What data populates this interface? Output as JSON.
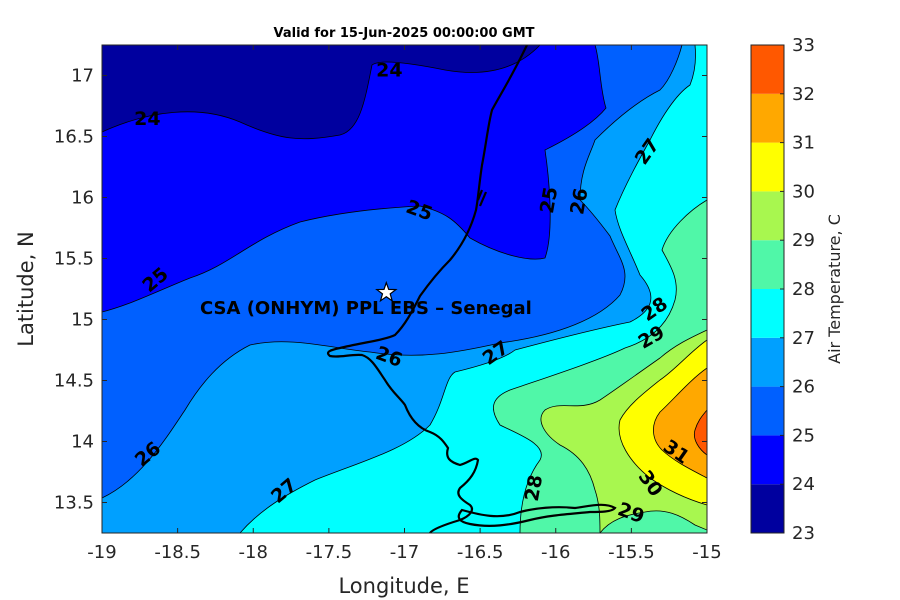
{
  "chart_data": {
    "type": "heatmap",
    "subtype": "filled-contour-map",
    "title": "Valid for 15-Jun-2025 00:00:00 GMT",
    "xlabel": "Longitude, E",
    "ylabel": "Latitude, N",
    "xlim": [
      -19,
      -15
    ],
    "ylim": [
      13.25,
      17.25
    ],
    "xticks": [
      "-19",
      "-18.5",
      "-18",
      "-17.5",
      "-17",
      "-16.5",
      "-16",
      "-15.5",
      "-15"
    ],
    "yticks": [
      "13.5",
      "14",
      "14.5",
      "15",
      "15.5",
      "16",
      "16.5",
      "17"
    ],
    "colorbar": {
      "label": "Air Temperature, C",
      "ticks": [
        "23",
        "24",
        "25",
        "26",
        "27",
        "28",
        "29",
        "30",
        "31",
        "32",
        "33"
      ],
      "levels": [
        23,
        24,
        25,
        26,
        27,
        28,
        29,
        30,
        31,
        32,
        33
      ],
      "colors": [
        "#00009f",
        "#0000ff",
        "#0060ff",
        "#00a0ff",
        "#00ffff",
        "#50f7a8",
        "#a8f74f",
        "#ffff00",
        "#ffa800",
        "#ff5800",
        "#ff0000"
      ]
    },
    "contour_labels": [
      {
        "text": "24",
        "lon": -17.1,
        "lat": 17.05
      },
      {
        "text": "24",
        "lon": -18.7,
        "lat": 16.65
      },
      {
        "text": "25",
        "lon": -16.9,
        "lat": 15.9
      },
      {
        "text": "25",
        "lon": -16.05,
        "lat": 15.98
      },
      {
        "text": "26",
        "lon": -15.85,
        "lat": 15.97
      },
      {
        "text": "27",
        "lon": -15.4,
        "lat": 16.38
      },
      {
        "text": "25",
        "lon": -18.65,
        "lat": 15.33
      },
      {
        "text": "28",
        "lon": -15.35,
        "lat": 15.09
      },
      {
        "text": "29",
        "lon": -15.37,
        "lat": 14.86
      },
      {
        "text": "26",
        "lon": -17.1,
        "lat": 14.7
      },
      {
        "text": "27",
        "lon": -16.4,
        "lat": 14.73
      },
      {
        "text": "26",
        "lon": -18.7,
        "lat": 13.9
      },
      {
        "text": "31",
        "lon": -15.2,
        "lat": 13.92
      },
      {
        "text": "30",
        "lon": -15.37,
        "lat": 13.66
      },
      {
        "text": "28",
        "lon": -16.15,
        "lat": 13.62
      },
      {
        "text": "27",
        "lon": -17.8,
        "lat": 13.6
      },
      {
        "text": "29",
        "lon": -15.5,
        "lat": 13.42
      }
    ],
    "site": {
      "name": "CSA (ONHYM) PPL EBS  – Senegal",
      "lon": -17.12,
      "lat": 15.22
    }
  }
}
